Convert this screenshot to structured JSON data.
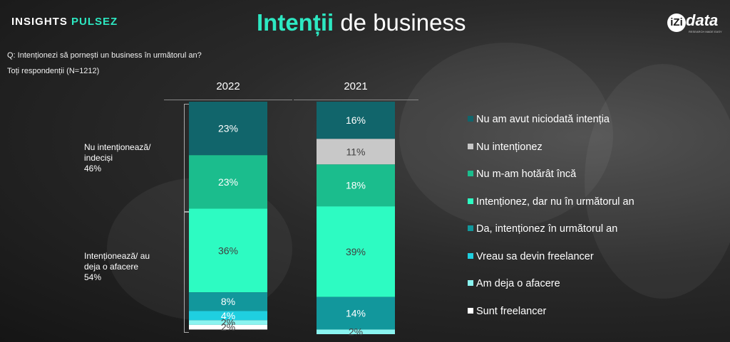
{
  "header": {
    "brand_left_1": "INSIGHTS",
    "brand_left_2": "PULSEZ",
    "title_highlight": "Intenții",
    "title_rest": " de business",
    "logo_mark": "iZi",
    "logo_rest": "data",
    "logo_tagline": "RESEARCH MADE EASY"
  },
  "question": "Q: Intenționezi să pornești un business în următorul an?",
  "subset": "Toți respondenții (N=1212)",
  "groups": {
    "negative": "Nu intenționează/\nindeciși\n46%",
    "positive": "Intenționează/ au\ndeja o afacere\n54%"
  },
  "chart_data": {
    "type": "bar",
    "stacked": true,
    "categories": [
      "2022",
      "2021"
    ],
    "series": [
      {
        "name": "Nu am avut niciodată intenția",
        "color": "#11656b",
        "values": [
          23,
          16
        ]
      },
      {
        "name": "Nu intenționez",
        "color": "#c8c8c8",
        "values": [
          0,
          11
        ]
      },
      {
        "name": "Nu m-am hotărât încă",
        "color": "#1bbd8d",
        "values": [
          23,
          18
        ]
      },
      {
        "name": "Intenționez, dar nu în următorul an",
        "color": "#2dfbc2",
        "values": [
          36,
          39
        ]
      },
      {
        "name": "Da, intenționez în următorul an",
        "color": "#12979c",
        "values": [
          8,
          14
        ]
      },
      {
        "name": "Vreau sa devin freelancer",
        "color": "#1fcfe0",
        "values": [
          4,
          0
        ]
      },
      {
        "name": "Am deja o afacere",
        "color": "#8af4f0",
        "values": [
          2,
          2
        ]
      },
      {
        "name": "Sunt freelancer",
        "color": "#ffffff",
        "values": [
          2,
          0
        ]
      }
    ],
    "data_labels": [
      [
        "23%",
        "",
        "23%",
        "36%",
        "8%",
        "4%",
        "2%",
        "2%"
      ],
      [
        "16%",
        "11%",
        "18%",
        "39%",
        "14%",
        "",
        "2%",
        ""
      ]
    ],
    "ylim": [
      0,
      100
    ]
  }
}
